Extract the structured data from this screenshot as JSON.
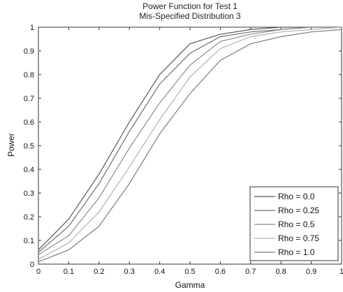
{
  "chart_data": {
    "type": "line",
    "title": "Power Function for Test 1",
    "subtitle": "Mis-Specified Distribution 3",
    "xlabel": "Gamma",
    "ylabel": "Power",
    "xlim": [
      0,
      1
    ],
    "ylim": [
      0,
      1
    ],
    "grid": false,
    "legend_position": "bottom-right",
    "x": [
      0,
      0.1,
      0.2,
      0.3,
      0.4,
      0.5,
      0.6,
      0.7,
      0.8,
      0.9,
      1.0
    ],
    "x_ticks": [
      "0",
      "0.1",
      "0.2",
      "0.3",
      "0.4",
      "0.5",
      "0.6",
      "0.7",
      "0.8",
      "0.9",
      "1"
    ],
    "y_ticks": [
      "0",
      "0.1",
      "0.2",
      "0.3",
      "0.4",
      "0.5",
      "0.6",
      "0.7",
      "0.8",
      "0.9",
      "1"
    ],
    "series": [
      {
        "name": "Rho = 0.0",
        "color": "#555555",
        "values": [
          0.06,
          0.19,
          0.38,
          0.6,
          0.8,
          0.93,
          0.97,
          0.99,
          1.0,
          1.0,
          1.0
        ]
      },
      {
        "name": "Rho = 0.25",
        "color": "#6f6f6f",
        "values": [
          0.05,
          0.16,
          0.34,
          0.56,
          0.76,
          0.89,
          0.96,
          0.98,
          0.99,
          1.0,
          1.0
        ]
      },
      {
        "name": "Rho = 0.5",
        "color": "#8a8a8a",
        "values": [
          0.04,
          0.12,
          0.28,
          0.49,
          0.68,
          0.84,
          0.94,
          0.97,
          0.99,
          1.0,
          1.0
        ]
      },
      {
        "name": "Rho = 0.75",
        "color": "#b0b0b0",
        "values": [
          0.02,
          0.09,
          0.22,
          0.41,
          0.61,
          0.79,
          0.91,
          0.96,
          0.98,
          0.99,
          1.0
        ]
      },
      {
        "name": "Rho = 1.0",
        "color": "#7c7c7c",
        "values": [
          0.01,
          0.06,
          0.16,
          0.34,
          0.55,
          0.72,
          0.86,
          0.93,
          0.96,
          0.98,
          0.99
        ]
      }
    ]
  }
}
